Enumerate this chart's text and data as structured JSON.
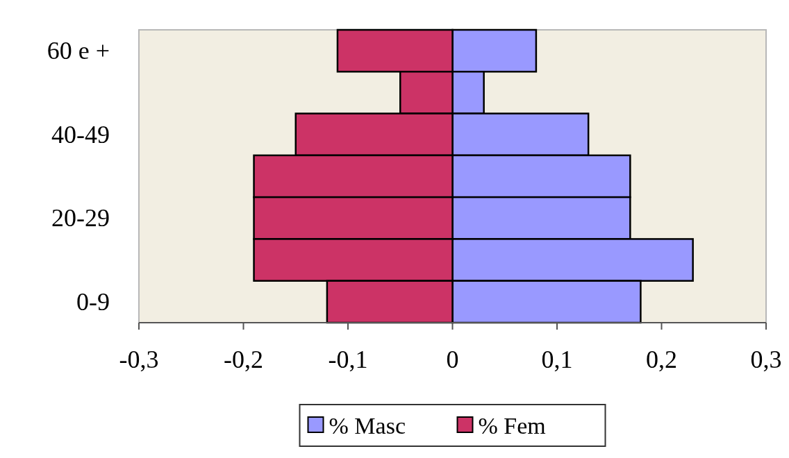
{
  "chart_data": {
    "type": "bar",
    "orientation": "horizontal",
    "stacked": true,
    "categories": [
      "60 e +",
      null,
      "40-49",
      null,
      "20-29",
      null,
      "0-9"
    ],
    "series": [
      {
        "name": "% Masc",
        "color": "#9999ff",
        "values": [
          0.08,
          0.03,
          0.13,
          0.17,
          0.17,
          0.23,
          0.18
        ]
      },
      {
        "name": "% Fem",
        "color": "#cc3366",
        "values": [
          -0.11,
          -0.05,
          -0.15,
          -0.19,
          -0.19,
          -0.19,
          -0.12
        ]
      }
    ],
    "xlim": [
      -0.3,
      0.3
    ],
    "xticks": [
      {
        "value": -0.3,
        "label": "-0,3"
      },
      {
        "value": -0.2,
        "label": "-0,2"
      },
      {
        "value": -0.1,
        "label": "-0,1"
      },
      0,
      {
        "value": 0.1,
        "label": "0,1"
      },
      {
        "value": 0.2,
        "label": "0,2"
      },
      {
        "value": 0.3,
        "label": "0,3"
      }
    ],
    "legend": "bottom"
  }
}
